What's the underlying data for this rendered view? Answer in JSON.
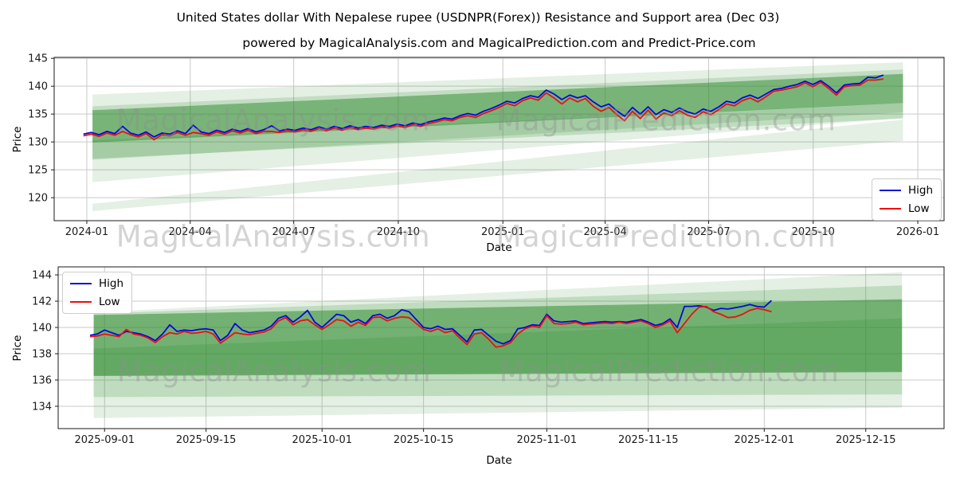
{
  "title": "United States dollar With Nepalese rupee (USDNPR(Forex)) Resistance and Support area (Dec 03)",
  "subtitle": "powered by MagicalAnalysis.com and MagicalPrediction.com and Predict-Price.com",
  "watermarks": {
    "left": "MagicalAnalysis.com",
    "right": "MagicalPrediction.com"
  },
  "legend": {
    "high_label": "High",
    "low_label": "Low"
  },
  "colors": {
    "high": "#0808dd",
    "low": "#ee0f0f",
    "band": "#2e8b2e",
    "grid": "#c9c9c9",
    "spine": "#1a1a1a",
    "text": "#1a1a1a"
  },
  "chart_data": [
    {
      "type": "line",
      "name": "overview",
      "xlabel": "Date",
      "ylabel": "Price",
      "grid": true,
      "legend_position": "lower right",
      "x_epoch": "2024-01-01",
      "xlim_days": [
        -28.7,
        754.1
      ],
      "ylim": [
        115.88,
        145.17
      ],
      "y_ticks": [
        145,
        140,
        135,
        130,
        125,
        120
      ],
      "x_ticks": [
        {
          "label": "2024-01",
          "day": 0
        },
        {
          "label": "2024-04",
          "day": 91
        },
        {
          "label": "2024-07",
          "day": 182
        },
        {
          "label": "2024-10",
          "day": 274
        },
        {
          "label": "2025-01",
          "day": 366
        },
        {
          "label": "2025-04",
          "day": 456
        },
        {
          "label": "2025-07",
          "day": 547
        },
        {
          "label": "2025-10",
          "day": 639
        },
        {
          "label": "2026-01",
          "day": 731
        }
      ],
      "bands": [
        {
          "x0": 5,
          "x1": 718,
          "t0": 138.5,
          "t1": 144.3,
          "b0": 122.8,
          "b1": 134.3,
          "a": 0.13
        },
        {
          "x0": 5,
          "x1": 718,
          "t0": 136.4,
          "t1": 143.0,
          "b0": 126.8,
          "b1": 135.3,
          "a": 0.18
        },
        {
          "x0": 5,
          "x1": 718,
          "t0": 135.7,
          "t1": 142.2,
          "b0": 129.9,
          "b1": 137.0,
          "a": 0.5
        },
        {
          "x0": 5,
          "x1": 718,
          "t0": 130.3,
          "t1": 137.0,
          "b0": 127.0,
          "b1": 134.2,
          "a": 0.2
        },
        {
          "x0": 5,
          "x1": 718,
          "t0": 118.9,
          "t1": 134.0,
          "b0": 117.6,
          "b1": 130.2,
          "a": 0.13
        }
      ],
      "series": [
        {
          "name": "High",
          "color_key": "high",
          "start_day": -3,
          "step_days": 6.9,
          "values": [
            131.4,
            131.7,
            131.3,
            131.9,
            131.5,
            132.8,
            131.6,
            131.2,
            131.8,
            130.9,
            131.6,
            131.4,
            132.0,
            131.5,
            133.0,
            131.8,
            131.5,
            132.1,
            131.7,
            132.3,
            131.9,
            132.4,
            131.8,
            132.2,
            132.9,
            132.0,
            132.3,
            132.1,
            132.5,
            132.2,
            132.7,
            132.3,
            132.8,
            132.4,
            132.9,
            132.5,
            132.8,
            132.6,
            133.0,
            132.8,
            133.2,
            132.9,
            133.4,
            133.1,
            133.6,
            133.9,
            134.3,
            134.1,
            134.7,
            135.1,
            134.8,
            135.5,
            136.0,
            136.6,
            137.3,
            137.0,
            137.8,
            138.3,
            138.0,
            139.3,
            138.6,
            137.6,
            138.4,
            137.9,
            138.3,
            137.2,
            136.3,
            136.8,
            135.6,
            134.6,
            136.2,
            135.0,
            136.3,
            134.9,
            135.8,
            135.3,
            136.1,
            135.4,
            135.0,
            135.9,
            135.5,
            136.3,
            137.3,
            137.0,
            137.9,
            138.4,
            137.8,
            138.6,
            139.4,
            139.6,
            140.0,
            140.3,
            140.9,
            140.3,
            141.0,
            140.0,
            138.8,
            140.2,
            140.4,
            140.5,
            141.6,
            141.5,
            142.0
          ]
        },
        {
          "name": "Low",
          "color_key": "low",
          "start_day": -3,
          "step_days": 6.9,
          "values": [
            131.1,
            131.4,
            131.0,
            131.6,
            131.2,
            131.9,
            131.3,
            130.9,
            131.5,
            130.4,
            131.3,
            131.1,
            131.7,
            131.2,
            131.7,
            131.5,
            131.2,
            131.8,
            131.4,
            132.0,
            131.6,
            132.1,
            131.5,
            131.9,
            131.9,
            131.7,
            132.0,
            131.8,
            132.2,
            131.9,
            132.4,
            132.0,
            132.5,
            132.1,
            132.6,
            132.2,
            132.5,
            132.3,
            132.7,
            132.5,
            132.9,
            132.6,
            133.1,
            132.8,
            133.3,
            133.6,
            134.0,
            133.8,
            134.4,
            134.7,
            134.4,
            135.1,
            135.6,
            136.2,
            136.9,
            136.5,
            137.4,
            137.9,
            137.5,
            138.8,
            137.9,
            136.8,
            137.9,
            137.2,
            137.8,
            136.4,
            135.5,
            136.2,
            134.9,
            133.8,
            135.5,
            134.2,
            135.7,
            134.1,
            135.2,
            134.7,
            135.6,
            134.8,
            134.4,
            135.4,
            134.9,
            135.8,
            136.8,
            136.5,
            137.4,
            137.9,
            137.2,
            138.1,
            139.1,
            139.3,
            139.6,
            139.9,
            140.6,
            139.9,
            140.7,
            139.6,
            138.4,
            139.9,
            140.1,
            140.2,
            141.1,
            141.1,
            141.3
          ]
        }
      ]
    },
    {
      "type": "line",
      "name": "detail",
      "xlabel": "Date",
      "ylabel": "Price",
      "grid": true,
      "legend_position": "upper left",
      "x_epoch": "2025-09-01",
      "xlim_days": [
        -6.4,
        115.8
      ],
      "ylim": [
        132.3,
        144.61
      ],
      "y_ticks": [
        144,
        142,
        140,
        138,
        136,
        134
      ],
      "x_ticks": [
        {
          "label": "2025-09-01",
          "day": 0
        },
        {
          "label": "2025-09-15",
          "day": 14
        },
        {
          "label": "2025-10-01",
          "day": 30
        },
        {
          "label": "2025-10-15",
          "day": 44
        },
        {
          "label": "2025-11-01",
          "day": 61
        },
        {
          "label": "2025-11-15",
          "day": 75
        },
        {
          "label": "2025-12-01",
          "day": 91
        },
        {
          "label": "2025-12-15",
          "day": 105
        }
      ],
      "bands": [
        {
          "x0": -1.5,
          "x1": 110,
          "t0": 141.15,
          "t1": 144.2,
          "b0": 133.1,
          "b1": 133.9,
          "a": 0.13
        },
        {
          "x0": -1.5,
          "x1": 110,
          "t0": 141.05,
          "t1": 143.2,
          "b0": 134.7,
          "b1": 134.9,
          "a": 0.2
        },
        {
          "x0": -1.5,
          "x1": 110,
          "t0": 140.95,
          "t1": 142.15,
          "b0": 136.3,
          "b1": 136.6,
          "a": 0.52
        },
        {
          "x0": -1.5,
          "x1": 110,
          "t0": 138.4,
          "t1": 140.7,
          "b0": 136.35,
          "b1": 136.65,
          "a": 0.22
        }
      ],
      "series": [
        {
          "name": "High",
          "color_key": "high",
          "start_day": -2,
          "step_days": 1,
          "values": [
            139.4,
            139.5,
            139.8,
            139.6,
            139.4,
            139.7,
            139.6,
            139.5,
            139.3,
            139.0,
            139.5,
            140.2,
            139.7,
            139.8,
            139.75,
            139.85,
            139.9,
            139.8,
            139.0,
            139.4,
            140.3,
            139.8,
            139.6,
            139.7,
            139.8,
            140.1,
            140.7,
            140.9,
            140.4,
            140.8,
            141.3,
            140.4,
            140.0,
            140.5,
            141.0,
            140.9,
            140.4,
            140.6,
            140.3,
            140.9,
            141.0,
            140.7,
            140.9,
            141.35,
            141.2,
            140.6,
            140.0,
            139.9,
            140.1,
            139.85,
            139.9,
            139.4,
            138.9,
            139.8,
            139.85,
            139.4,
            138.95,
            138.75,
            139.0,
            139.9,
            140.0,
            140.2,
            140.15,
            141.0,
            140.5,
            140.4,
            140.45,
            140.5,
            140.3,
            140.35,
            140.4,
            140.45,
            140.4,
            140.45,
            140.4,
            140.5,
            140.6,
            140.4,
            140.15,
            140.3,
            140.65,
            140.0,
            141.6,
            141.6,
            141.65,
            141.55,
            141.3,
            141.45,
            141.4,
            141.5,
            141.6,
            141.75,
            141.6,
            141.55,
            142.05
          ]
        },
        {
          "name": "Low",
          "color_key": "low",
          "start_day": -2,
          "step_days": 1,
          "values": [
            139.3,
            139.35,
            139.5,
            139.4,
            139.3,
            139.85,
            139.5,
            139.4,
            139.2,
            138.85,
            139.3,
            139.6,
            139.5,
            139.7,
            139.55,
            139.6,
            139.7,
            139.5,
            138.8,
            139.2,
            139.6,
            139.5,
            139.45,
            139.55,
            139.65,
            139.9,
            140.5,
            140.75,
            140.2,
            140.5,
            140.6,
            140.2,
            139.85,
            140.2,
            140.6,
            140.5,
            140.1,
            140.4,
            140.15,
            140.75,
            140.8,
            140.5,
            140.7,
            140.8,
            140.75,
            140.3,
            139.85,
            139.7,
            139.9,
            139.6,
            139.75,
            139.2,
            138.7,
            139.5,
            139.6,
            139.1,
            138.5,
            138.6,
            138.85,
            139.5,
            139.9,
            140.1,
            140.0,
            140.9,
            140.3,
            140.25,
            140.3,
            140.4,
            140.2,
            140.25,
            140.3,
            140.35,
            140.3,
            140.4,
            140.3,
            140.4,
            140.5,
            140.3,
            140.0,
            140.2,
            140.5,
            139.6,
            140.3,
            141.0,
            141.55,
            141.6,
            141.2,
            141.0,
            140.75,
            140.8,
            141.0,
            141.3,
            141.45,
            141.35,
            141.2
          ]
        }
      ]
    }
  ]
}
